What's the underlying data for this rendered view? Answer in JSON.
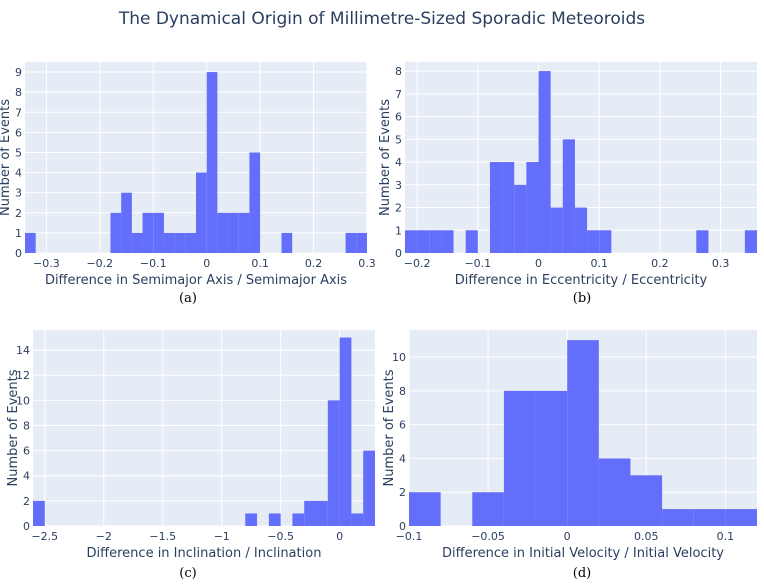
{
  "figure_title": "The Dynamical Origin of Millimetre-Sized Sporadic Meteoroids",
  "colors": {
    "bar": "#636efa",
    "plot_bg": "#e5ecf6",
    "grid": "#ffffff",
    "text": "#2a3f5f"
  },
  "chart_data": [
    {
      "type": "bar",
      "caption": "(a)",
      "xlabel": "Difference in Semimajor Axis / Semimajor Axis",
      "ylabel": "Number of Events",
      "xlim": [
        -0.34,
        0.3
      ],
      "ylim": [
        0,
        9.5
      ],
      "xticks": [
        -0.3,
        -0.2,
        -0.1,
        0,
        0.1,
        0.2,
        0.3
      ],
      "xtick_labels": [
        "−0.3",
        "−0.2",
        "−0.1",
        "0",
        "0.1",
        "0.2",
        "0.3"
      ],
      "yticks": [
        0,
        1,
        2,
        3,
        4,
        5,
        6,
        7,
        8,
        9
      ],
      "ytick_labels": [
        "0",
        "1",
        "2",
        "3",
        "4",
        "5",
        "6",
        "7",
        "8",
        "9"
      ],
      "bin_width": 0.02,
      "bins": [
        {
          "x0": -0.34,
          "count": 1
        },
        {
          "x0": -0.18,
          "count": 2
        },
        {
          "x0": -0.16,
          "count": 3
        },
        {
          "x0": -0.14,
          "count": 1
        },
        {
          "x0": -0.12,
          "count": 2
        },
        {
          "x0": -0.1,
          "count": 2
        },
        {
          "x0": -0.08,
          "count": 1
        },
        {
          "x0": -0.06,
          "count": 1
        },
        {
          "x0": -0.04,
          "count": 1
        },
        {
          "x0": -0.02,
          "count": 4
        },
        {
          "x0": 0.0,
          "count": 9
        },
        {
          "x0": 0.02,
          "count": 2
        },
        {
          "x0": 0.04,
          "count": 2
        },
        {
          "x0": 0.06,
          "count": 2
        },
        {
          "x0": 0.08,
          "count": 5
        },
        {
          "x0": 0.14,
          "count": 1
        },
        {
          "x0": 0.26,
          "count": 1
        },
        {
          "x0": 0.28,
          "count": 1
        }
      ]
    },
    {
      "type": "bar",
      "caption": "(b)",
      "xlabel": "Difference in Eccentricity / Eccentricity",
      "ylabel": "Number of Events",
      "xlim": [
        -0.22,
        0.36
      ],
      "ylim": [
        0,
        8.4
      ],
      "xticks": [
        -0.2,
        -0.1,
        0,
        0.1,
        0.2,
        0.3
      ],
      "xtick_labels": [
        "−0.2",
        "−0.1",
        "0",
        "0.1",
        "0.2",
        "0.3"
      ],
      "yticks": [
        0,
        1,
        2,
        3,
        4,
        5,
        6,
        7,
        8
      ],
      "ytick_labels": [
        "0",
        "1",
        "2",
        "3",
        "4",
        "5",
        "6",
        "7",
        "8"
      ],
      "bin_width": 0.02,
      "bins": [
        {
          "x0": -0.22,
          "count": 1
        },
        {
          "x0": -0.2,
          "count": 1
        },
        {
          "x0": -0.18,
          "count": 1
        },
        {
          "x0": -0.16,
          "count": 1
        },
        {
          "x0": -0.12,
          "count": 1
        },
        {
          "x0": -0.08,
          "count": 4
        },
        {
          "x0": -0.06,
          "count": 4
        },
        {
          "x0": -0.04,
          "count": 3
        },
        {
          "x0": -0.02,
          "count": 4
        },
        {
          "x0": 0.0,
          "count": 8
        },
        {
          "x0": 0.02,
          "count": 2
        },
        {
          "x0": 0.04,
          "count": 5
        },
        {
          "x0": 0.06,
          "count": 2
        },
        {
          "x0": 0.08,
          "count": 1
        },
        {
          "x0": 0.1,
          "count": 1
        },
        {
          "x0": 0.26,
          "count": 1
        },
        {
          "x0": 0.34,
          "count": 1
        }
      ]
    },
    {
      "type": "bar",
      "caption": "(c)",
      "xlabel": "Difference in Inclination / Inclination",
      "ylabel": "Number of Events",
      "xlim": [
        -2.6,
        0.3
      ],
      "ylim": [
        0,
        15.6
      ],
      "xticks": [
        -2.5,
        -2,
        -1.5,
        -1,
        -0.5,
        0
      ],
      "xtick_labels": [
        "−2.5",
        "−2",
        "−1.5",
        "−1",
        "−0.5",
        "0"
      ],
      "yticks": [
        0,
        2,
        4,
        6,
        8,
        10,
        12,
        14
      ],
      "ytick_labels": [
        "0",
        "2",
        "4",
        "6",
        "8",
        "10",
        "12",
        "14"
      ],
      "bin_width": 0.1,
      "bins": [
        {
          "x0": -2.6,
          "count": 2
        },
        {
          "x0": -0.8,
          "count": 1
        },
        {
          "x0": -0.6,
          "count": 1
        },
        {
          "x0": -0.4,
          "count": 1
        },
        {
          "x0": -0.3,
          "count": 2
        },
        {
          "x0": -0.2,
          "count": 2
        },
        {
          "x0": -0.1,
          "count": 10
        },
        {
          "x0": 0.0,
          "count": 15
        },
        {
          "x0": 0.1,
          "count": 1
        },
        {
          "x0": 0.2,
          "count": 6
        }
      ]
    },
    {
      "type": "bar",
      "caption": "(d)",
      "xlabel": "Difference in Initial Velocity / Initial Velocity",
      "ylabel": "Number of Events",
      "xlim": [
        -0.1,
        0.12
      ],
      "ylim": [
        0,
        11.6
      ],
      "xticks": [
        -0.1,
        -0.05,
        0,
        0.05,
        0.1
      ],
      "xtick_labels": [
        "−0.1",
        "−0.05",
        "0",
        "0.05",
        "0.1"
      ],
      "yticks": [
        0,
        2,
        4,
        6,
        8,
        10
      ],
      "ytick_labels": [
        "0",
        "2",
        "4",
        "6",
        "8",
        "10"
      ],
      "bin_width": 0.02,
      "bins": [
        {
          "x0": -0.1,
          "count": 2
        },
        {
          "x0": -0.06,
          "count": 2
        },
        {
          "x0": -0.04,
          "count": 8
        },
        {
          "x0": -0.02,
          "count": 8
        },
        {
          "x0": 0.0,
          "count": 11
        },
        {
          "x0": 0.02,
          "count": 4
        },
        {
          "x0": 0.04,
          "count": 3
        },
        {
          "x0": 0.06,
          "count": 1
        },
        {
          "x0": 0.08,
          "count": 1
        },
        {
          "x0": 0.1,
          "count": 1
        }
      ]
    }
  ]
}
